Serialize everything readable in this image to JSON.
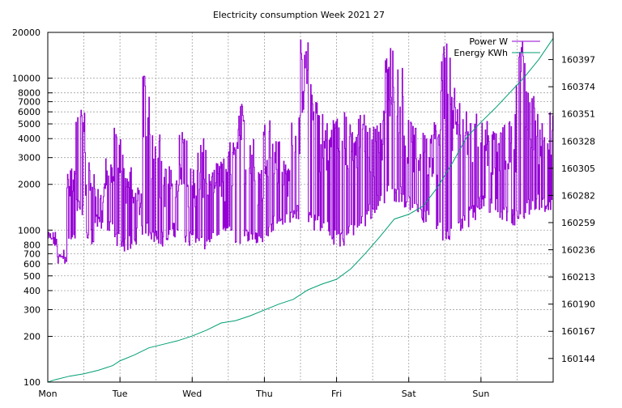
{
  "chart_data": {
    "type": "line",
    "title": "Electricity consumption Week 2021 27",
    "x_categories": [
      "Mon",
      "Tue",
      "Wed",
      "Thu",
      "Fri",
      "Sat",
      "Sun"
    ],
    "y_left": {
      "scale": "log",
      "range": [
        100,
        20000
      ],
      "ticks": [
        100,
        200,
        300,
        400,
        500,
        600,
        700,
        800,
        1000,
        2000,
        3000,
        4000,
        5000,
        6000,
        7000,
        8000,
        10000,
        20000
      ]
    },
    "y_right": {
      "range": [
        160124,
        160420
      ],
      "ticks": [
        160144,
        160167,
        160190,
        160213,
        160236,
        160259,
        160282,
        160305,
        160328,
        160351,
        160374,
        160397
      ]
    },
    "grid": true,
    "legend": {
      "placement": "top-right"
    },
    "series": [
      {
        "name": "Power W",
        "axis": "left",
        "color": "#9400d3",
        "baseline": [
          800,
          650,
          850,
          1400,
          900,
          1100,
          1000,
          850,
          800,
          900,
          1000,
          900,
          850,
          1000,
          900,
          850,
          800,
          900,
          950,
          1000,
          900,
          900,
          850,
          1000,
          1100,
          1200,
          1300,
          1200,
          1100,
          1000,
          900,
          850,
          1000,
          1100,
          1300,
          1500,
          1800,
          1700,
          1500,
          1300,
          1200,
          1000,
          900,
          1000,
          1100,
          1300,
          1500,
          1400,
          1300,
          1200,
          1200,
          1400,
          1500,
          1400
        ],
        "peaks": [
          1000,
          700,
          2800,
          7000,
          3000,
          2000,
          3000,
          5000,
          3000,
          2000,
          12000,
          5000,
          3000,
          2500,
          5000,
          3000,
          4000,
          2500,
          3000,
          4000,
          7000,
          5000,
          3000,
          6000,
          4500,
          3000,
          6000,
          18000,
          10000,
          6000,
          6000,
          7000,
          5000,
          6000,
          5000,
          7000,
          16000,
          12000,
          6000,
          5000,
          5000,
          6000,
          18000,
          9000,
          8000,
          6000,
          6000,
          5000,
          5000,
          6000,
          18000,
          9000,
          6000,
          6000
        ]
      },
      {
        "name": "Energy KWh",
        "axis": "right",
        "color": "#009e73",
        "x": [
          0,
          0.1,
          0.3,
          0.5,
          0.7,
          0.9,
          1.0,
          1.2,
          1.4,
          1.6,
          1.8,
          2.0,
          2.2,
          2.4,
          2.6,
          2.8,
          3.0,
          3.2,
          3.4,
          3.6,
          3.8,
          4.0,
          4.2,
          4.4,
          4.6,
          4.8,
          5.0,
          5.2,
          5.4,
          5.6,
          5.8,
          6.0,
          6.2,
          6.4,
          6.6,
          6.8,
          7.0
        ],
        "y": [
          160124,
          160126,
          160129,
          160131,
          160134,
          160138,
          160142,
          160147,
          160153,
          160156,
          160159,
          160163,
          160168,
          160174,
          160176,
          160180,
          160185,
          160190,
          160194,
          160202,
          160207,
          160211,
          160220,
          160233,
          160247,
          160262,
          160266,
          160273,
          160289,
          160309,
          160331,
          160344,
          160356,
          160369,
          160382,
          160397,
          160415
        ]
      }
    ]
  }
}
